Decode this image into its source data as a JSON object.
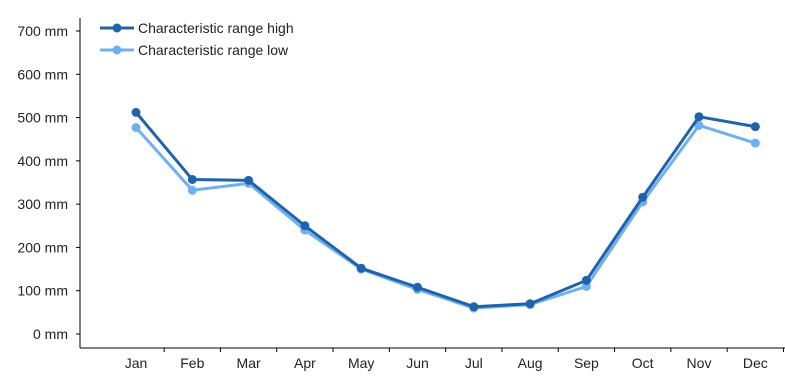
{
  "chart_data": {
    "type": "line",
    "categories": [
      "Jan",
      "Feb",
      "Mar",
      "Apr",
      "May",
      "Jun",
      "Jul",
      "Aug",
      "Sep",
      "Oct",
      "Nov",
      "Dec"
    ],
    "y_ticks": [
      "0 mm",
      "100 mm",
      "200 mm",
      "300 mm",
      "400 mm",
      "500 mm",
      "600 mm",
      "700 mm"
    ],
    "ylim": [
      0,
      700
    ],
    "y_unit": "mm",
    "grid": false,
    "legend_position": "top-left",
    "series": [
      {
        "name": "Characteristic range high",
        "color": "#1f63aa",
        "values": [
          512,
          357,
          355,
          250,
          152,
          108,
          63,
          70,
          124,
          316,
          502,
          479
        ]
      },
      {
        "name": "Characteristic range low",
        "color": "#6fb1f0",
        "values": [
          477,
          332,
          348,
          240,
          150,
          103,
          60,
          68,
          110,
          305,
          482,
          441
        ]
      }
    ]
  }
}
